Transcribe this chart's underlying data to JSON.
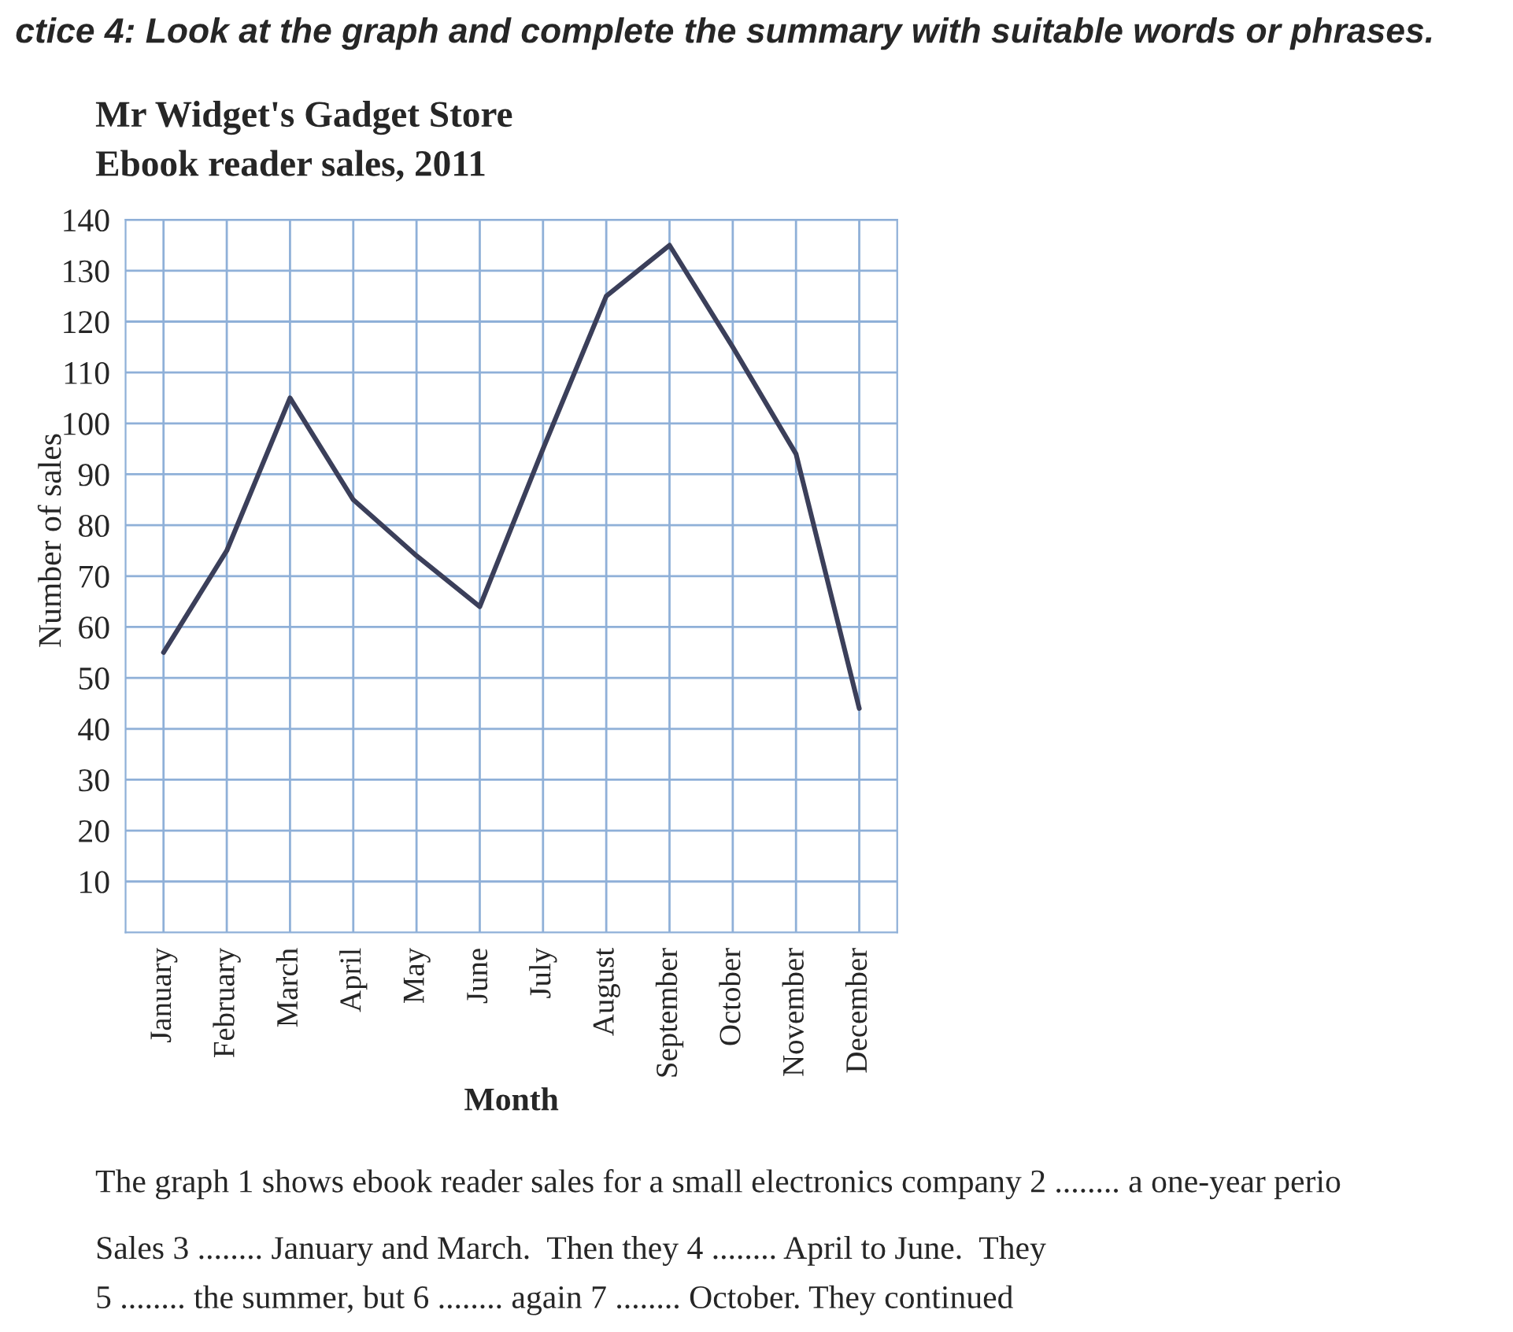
{
  "chart_data": {
    "type": "line",
    "title": "Mr Widget's Gadget Store",
    "subtitle": "Ebook reader sales, 2011",
    "xlabel": "Month",
    "ylabel": "Number of sales",
    "categories": [
      "January",
      "February",
      "March",
      "April",
      "May",
      "June",
      "July",
      "August",
      "September",
      "October",
      "November",
      "December"
    ],
    "series": [
      {
        "color": "#3b3f5a",
        "values": [
          55,
          75,
          105,
          85,
          74,
          64,
          95,
          125,
          135,
          115,
          94,
          44
        ]
      }
    ],
    "ylim": [
      0,
      140
    ],
    "yticks": [
      10,
      20,
      30,
      40,
      50,
      60,
      70,
      80,
      90,
      100,
      110,
      120,
      130,
      140
    ],
    "grid": true,
    "legend": false,
    "marker": "none",
    "line_style": "solid",
    "annotations": [
      "ctice 4: Look at the graph and complete the summary with suitable words or phrases.",
      "The graph 1 shows ebook reader sales for a small electronics company 2 ........ a one-year perio",
      "Sales 3 ........ January and March.  Then they 4 ........ April to June.  They",
      "5 ........ the summer, but 6 ........ again 7 ........ October. They continued"
    ]
  }
}
